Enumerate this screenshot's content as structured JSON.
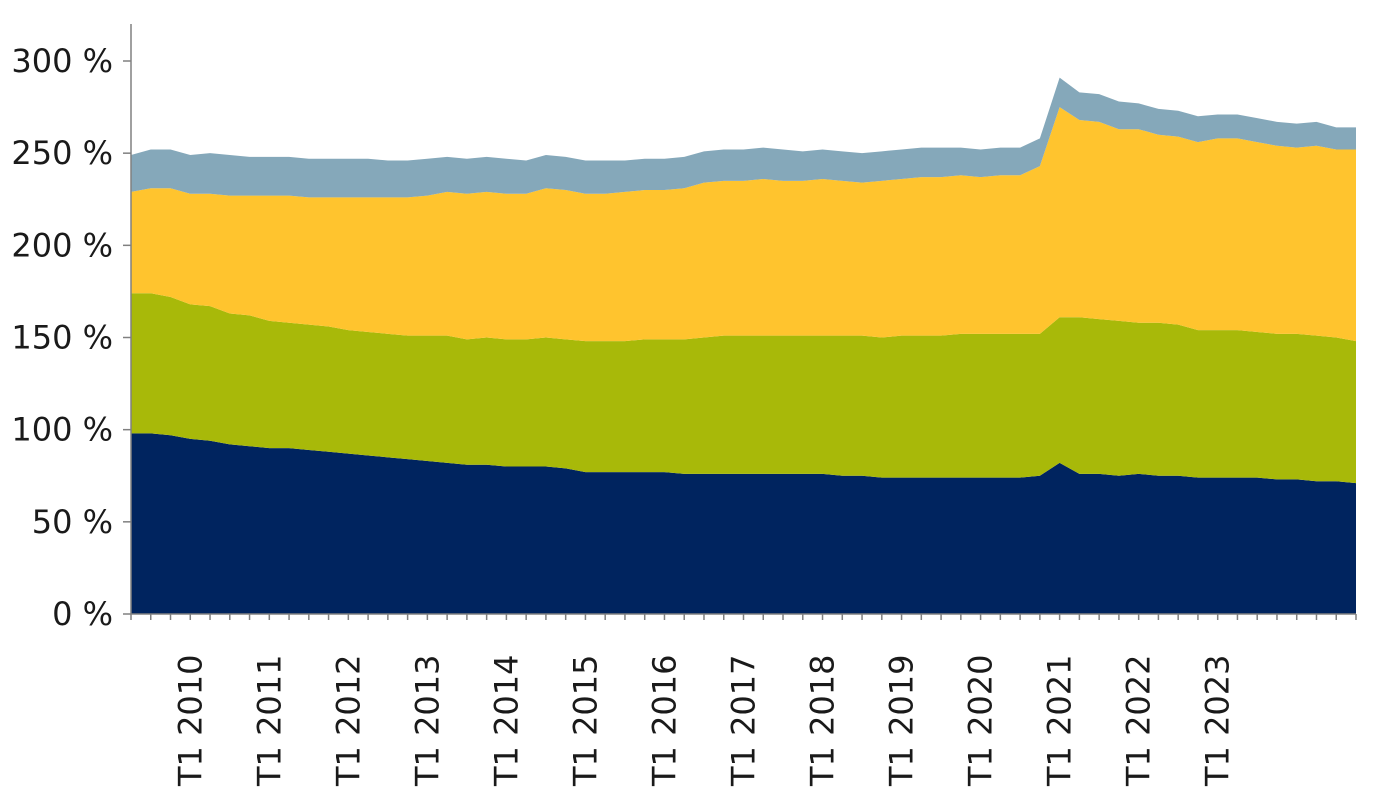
{
  "chart_data": {
    "type": "area",
    "stacked": true,
    "title": "",
    "xlabel": "",
    "ylabel": "",
    "ylim": [
      0,
      300
    ],
    "yticks": [
      0,
      50,
      100,
      150,
      200,
      250,
      300
    ],
    "ytick_labels": [
      "0 %",
      "50 %",
      "100 %",
      "150 %",
      "200 %",
      "250 %",
      "300 %"
    ],
    "x_start": "T2 2009",
    "x_end": "T4 2024",
    "xtick_labels": [
      "T1 2010",
      "T1 2011",
      "T1 2012",
      "T1 2013",
      "T1 2014",
      "T1 2015",
      "T1 2016",
      "T1 2017",
      "T1 2018",
      "T1 2019",
      "T1 2020",
      "T1 2021",
      "T1 2022",
      "T1 2023"
    ],
    "grid": false,
    "legend": "none",
    "series": [
      {
        "color": "#00245f",
        "values": [
          98,
          98,
          97,
          95,
          94,
          92,
          91,
          90,
          90,
          89,
          88,
          87,
          86,
          85,
          84,
          83,
          82,
          81,
          81,
          80,
          80,
          80,
          79,
          77,
          77,
          77,
          77,
          77,
          76,
          76,
          76,
          76,
          76,
          76,
          76,
          76,
          75,
          75,
          74,
          74,
          74,
          74,
          74,
          74,
          74,
          74,
          75,
          82,
          76,
          76,
          75,
          76,
          75,
          75,
          74,
          74,
          74,
          74,
          73,
          73,
          72,
          72,
          71
        ]
      },
      {
        "color": "#a8b909",
        "values": [
          76,
          76,
          75,
          73,
          73,
          71,
          71,
          69,
          68,
          68,
          68,
          67,
          67,
          67,
          67,
          68,
          69,
          68,
          69,
          69,
          69,
          70,
          70,
          71,
          71,
          71,
          72,
          72,
          73,
          74,
          75,
          75,
          75,
          75,
          75,
          75,
          76,
          76,
          76,
          77,
          77,
          77,
          78,
          78,
          78,
          78,
          77,
          79,
          85,
          84,
          84,
          82,
          83,
          82,
          80,
          80,
          80,
          79,
          79,
          79,
          79,
          78,
          77
        ]
      },
      {
        "color": "#ffc42e",
        "values": [
          55,
          57,
          59,
          60,
          61,
          64,
          65,
          68,
          69,
          69,
          70,
          72,
          73,
          74,
          75,
          76,
          78,
          79,
          79,
          79,
          79,
          81,
          81,
          80,
          80,
          81,
          81,
          81,
          82,
          84,
          84,
          84,
          85,
          84,
          84,
          85,
          84,
          83,
          85,
          85,
          86,
          86,
          86,
          85,
          86,
          86,
          91,
          114,
          107,
          107,
          104,
          105,
          102,
          102,
          102,
          104,
          104,
          103,
          102,
          101,
          103,
          102,
          104
        ]
      },
      {
        "color": "#85a8ba",
        "values": [
          20,
          21,
          21,
          21,
          22,
          22,
          21,
          21,
          21,
          21,
          21,
          21,
          21,
          20,
          20,
          20,
          19,
          19,
          19,
          19,
          18,
          18,
          18,
          18,
          18,
          17,
          17,
          17,
          17,
          17,
          17,
          17,
          17,
          17,
          16,
          16,
          16,
          16,
          16,
          16,
          16,
          16,
          15,
          15,
          15,
          15,
          15,
          16,
          15,
          15,
          15,
          14,
          14,
          14,
          14,
          13,
          13,
          13,
          13,
          13,
          13,
          12,
          12
        ]
      }
    ]
  }
}
